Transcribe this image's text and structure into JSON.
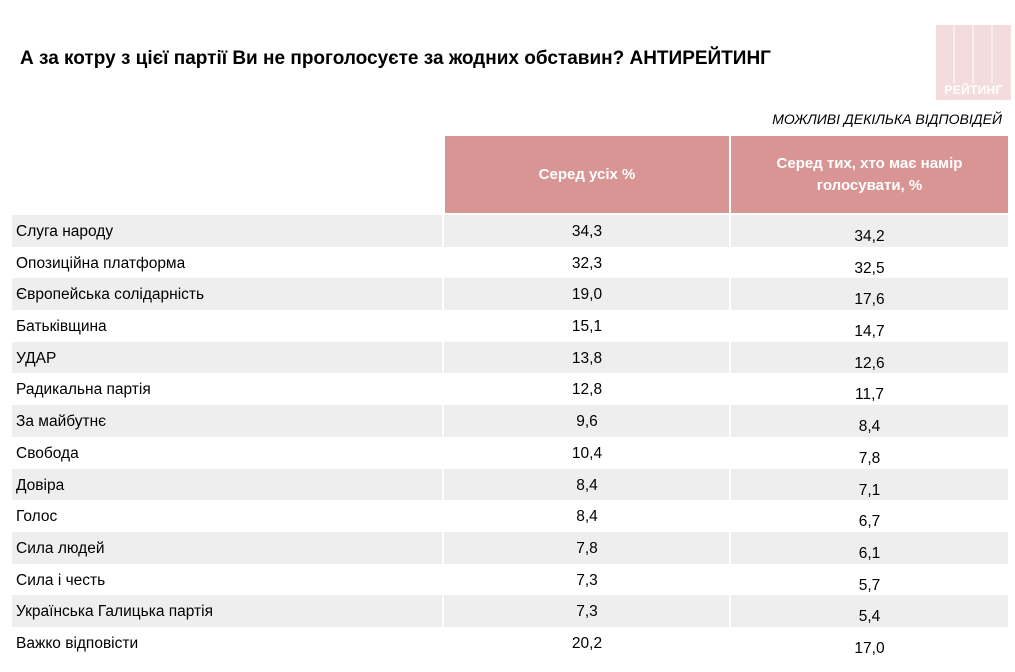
{
  "title": "А за котру з цієї партії Ви не проголосуєте за жодних обставин? АНТИРЕЙТИНГ",
  "logo_text": "РЕЙТИНГ",
  "note": "МОЖЛИВІ ДЕКІЛЬКА ВІДПОВІДЕЙ",
  "colors": {
    "header_bg": "#d99494",
    "row_alt": "#eeeeee",
    "logo_bg": "#f4dcdc"
  },
  "chart_data": {
    "type": "table",
    "columns": [
      "Серед усіх %",
      "Серед тих, хто має намір голосувати, %"
    ],
    "rows": [
      {
        "label": "Слуга народу",
        "values": [
          "34,3",
          "34,2"
        ]
      },
      {
        "label": "Опозиційна платформа",
        "values": [
          "32,3",
          "32,5"
        ]
      },
      {
        "label": "Європейська солідарність",
        "values": [
          "19,0",
          "17,6"
        ]
      },
      {
        "label": "Батьківщина",
        "values": [
          "15,1",
          "14,7"
        ]
      },
      {
        "label": "УДАР",
        "values": [
          "13,8",
          "12,6"
        ]
      },
      {
        "label": "Радикальна партія",
        "values": [
          "12,8",
          "11,7"
        ]
      },
      {
        "label": "За майбутнє",
        "values": [
          "9,6",
          "8,4"
        ]
      },
      {
        "label": "Свобода",
        "values": [
          "10,4",
          "7,8"
        ]
      },
      {
        "label": "Довіра",
        "values": [
          "8,4",
          "7,1"
        ]
      },
      {
        "label": "Голос",
        "values": [
          "8,4",
          "6,7"
        ]
      },
      {
        "label": "Сила людей",
        "values": [
          "7,8",
          "6,1"
        ]
      },
      {
        "label": "Сила і честь",
        "values": [
          "7,3",
          "5,7"
        ]
      },
      {
        "label": "Українська Галицька партія",
        "values": [
          "7,3",
          "5,4"
        ]
      },
      {
        "label": "Важко відповісти",
        "values": [
          "20,2",
          "17,0"
        ]
      }
    ]
  }
}
